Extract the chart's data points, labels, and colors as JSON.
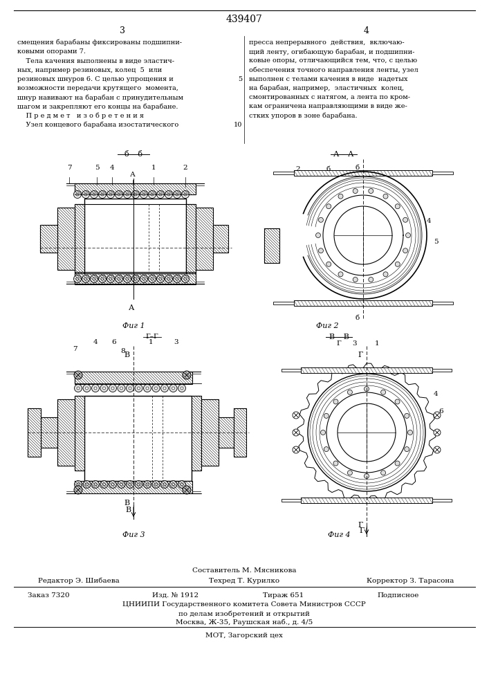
{
  "patent_number": "439407",
  "page_numbers": [
    "3",
    "4"
  ],
  "col1_text": [
    "смещения барабаны фиксированы подшипни-",
    "ковыми опорами 7.",
    "    Тела качения выполнены в виде эластич-",
    "ных, например резиновых, колец  5  или",
    "резиновых шнуров 6. С целью упрощения и",
    "возможности передачи крутящего  момента,",
    "шнур навивают на барабан с принудительным",
    "шагом и закрепляют его концы на барабане.",
    "    П р е д м е т   и з о б р е т е н и я",
    "    Узел концевого барабана изостатического"
  ],
  "col1_line_numbers": [
    null,
    null,
    null,
    null,
    5,
    null,
    null,
    null,
    null,
    10
  ],
  "col2_text": [
    "пресса непрерывного  действия,  включаю-",
    "щий ленту, огибающую барабан, и подшипни-",
    "ковые опоры, отличающийся тем, что, с целью",
    "обеспечения точного направления ленты, узел",
    "выполнен с телами качения в виде  надетых",
    "на барабан, например,  эластичных  колец,",
    "смонтированных с натягом, а лента по кром-",
    "кам ограничена направляющими в виде же-",
    "стких упоров в зоне барабана."
  ],
  "fig1_label": "Фиг 1",
  "fig2_label": "Фиг 2",
  "fig3_label": "Фиг 3",
  "fig4_label": "Фиг 4",
  "footer_compiler": "Составитель М. Мясникова",
  "footer_editor": "Редактор Э. Шибаева",
  "footer_tech": "Техред Т. Курилко",
  "footer_corrector": "Корректор З. Тарасона",
  "footer_order": "Заказ 7320",
  "footer_edition": "Изд. № 1912",
  "footer_circulation": "Тираж 651",
  "footer_subscription": "Подписное",
  "footer_org1": "ЦНИИПИ Государственного комитета Совета Министров СССР",
  "footer_org2": "по делам изобретений и открытий",
  "footer_org3": "Москва, Ж-35, Раушская наб., д. 4/5",
  "footer_plant": "МОТ, Загорский цех",
  "bg_color": "#ffffff",
  "text_color": "#000000"
}
